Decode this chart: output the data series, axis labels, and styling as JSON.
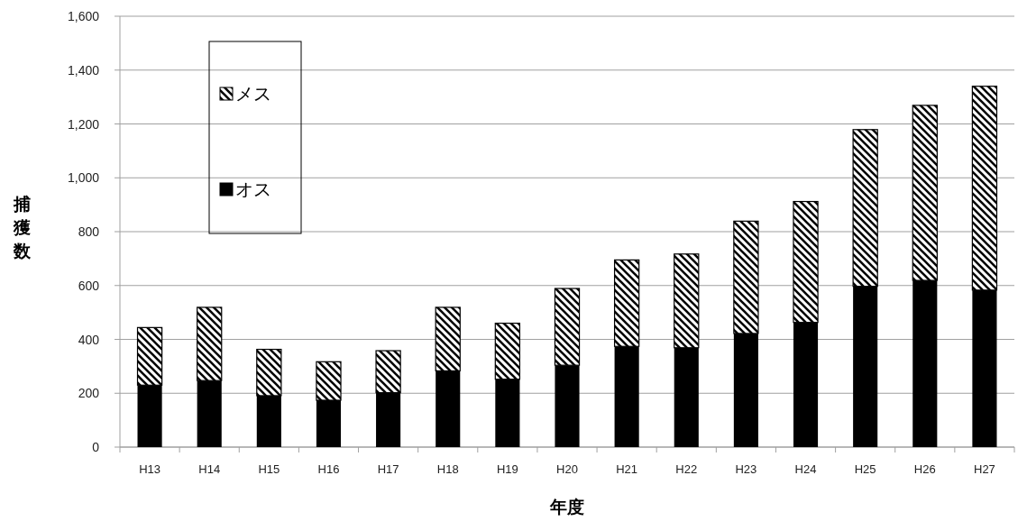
{
  "chart_data": {
    "type": "bar",
    "stacked": true,
    "xlabel": "年度",
    "ylabel": "捕獲数",
    "categories": [
      "H13",
      "H14",
      "H15",
      "H16",
      "H17",
      "H18",
      "H19",
      "H20",
      "H21",
      "H22",
      "H23",
      "H24",
      "H25",
      "H26",
      "H27"
    ],
    "series": [
      {
        "name": "オス",
        "color": "#000000",
        "values": [
          230,
          247,
          191,
          174,
          202,
          283,
          252,
          304,
          374,
          369,
          422,
          463,
          597,
          619,
          583
        ]
      },
      {
        "name": "メス",
        "color": "#000000",
        "values": [
          214,
          272,
          172,
          143,
          156,
          236,
          208,
          285,
          321,
          348,
          417,
          449,
          582,
          650,
          757
        ]
      }
    ],
    "ylim": [
      0,
      1600
    ],
    "yticks": [
      0,
      200,
      400,
      600,
      800,
      {
        "value": 1000,
        "label": "1,000"
      },
      {
        "value": 1200,
        "label": "1,200"
      },
      {
        "value": 1400,
        "label": "1,400"
      },
      {
        "value": 1600,
        "label": "1,600"
      }
    ],
    "grid": "y",
    "legend": "top left"
  }
}
